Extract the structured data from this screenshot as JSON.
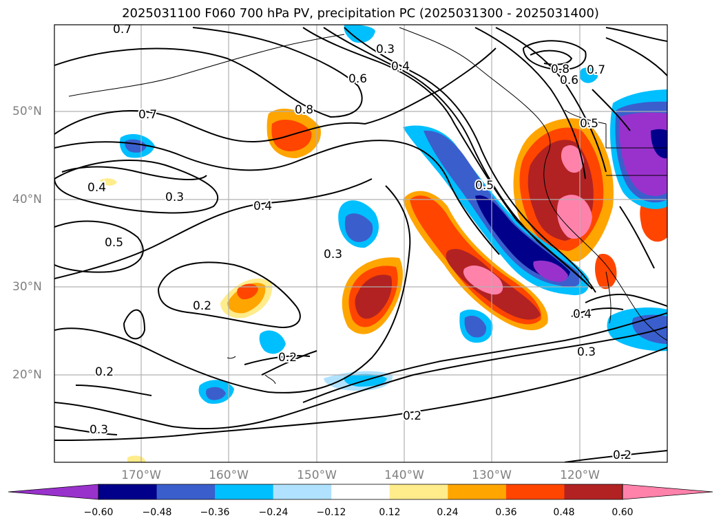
{
  "title": "2025031100 F060 700 hPa PV, precipitation PC (2025031300 - 2025031400)",
  "latitudes": [
    "50°N",
    "40°N",
    "30°N",
    "20°N"
  ],
  "longitudes": [
    "170°W",
    "160°W",
    "150°W",
    "140°W",
    "130°W",
    "120°W"
  ],
  "contour_labels": [
    "0.7",
    "0.3",
    "0.4",
    "0.6",
    "0.8",
    "0.7",
    "0.6",
    "0.7",
    "0.8",
    "0.5",
    "0.4",
    "0.5",
    "0.3",
    "0.4",
    "0.5",
    "0.3",
    "0.2",
    "0.2",
    "0.2",
    "0.4",
    "0.3",
    "0.3",
    "0.2",
    "0.2"
  ],
  "colorbar": {
    "ticks": [
      "−0.60",
      "−0.48",
      "−0.36",
      "−0.24",
      "−0.12",
      "0.12",
      "0.24",
      "0.36",
      "0.48",
      "0.60"
    ],
    "colors": [
      "#9932cc",
      "#00008b",
      "#3a5fcd",
      "#00bfff",
      "#b0e2ff",
      "#ffffff",
      "#ffec8b",
      "#ffa500",
      "#ff4500",
      "#b22222",
      "#ff82ab"
    ]
  },
  "chart_data": {
    "type": "heatmap",
    "title": "2025031100 F060 700 hPa PV, precipitation PC (2025031300 - 2025031400)",
    "x_axis_ticks": [
      "170°W",
      "160°W",
      "150°W",
      "140°W",
      "130°W",
      "120°W"
    ],
    "y_axis_ticks": [
      "50°N",
      "40°N",
      "30°N",
      "20°N"
    ],
    "colorbar_levels": [
      -0.6,
      -0.48,
      -0.36,
      -0.24,
      -0.12,
      0.12,
      0.24,
      0.36,
      0.48,
      0.6
    ],
    "colorbar_extend": "both",
    "contour_levels": [
      0.2,
      0.3,
      0.4,
      0.5,
      0.6,
      0.7,
      0.8
    ],
    "grid": true
  }
}
